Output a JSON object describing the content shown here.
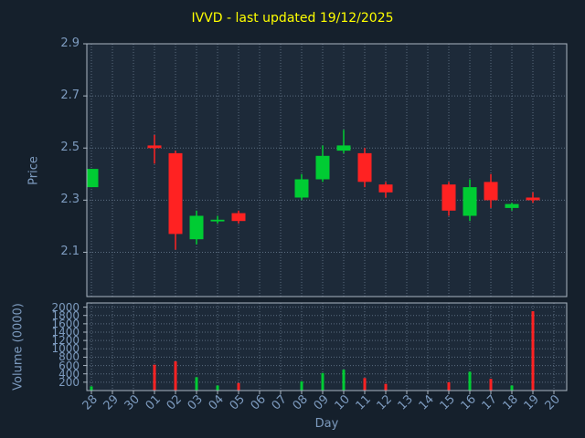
{
  "colors": {
    "figure_bg": "#15202c",
    "plot_bg": "#1d2a39",
    "grid": "#5b6c80",
    "spine": "#aab6c2",
    "tick_label": "#7d9bbf",
    "axis_label": "#7d9bbf",
    "title": "#ffff00",
    "up": "#00cc33",
    "down": "#ff2222"
  },
  "chart_data": {
    "type": "candlestick",
    "title": "IVVD - last updated 19/12/2025",
    "xlabel": "Day",
    "price_axis": {
      "label": "Price",
      "ticks": [
        2.1,
        2.3,
        2.5,
        2.7,
        2.9
      ],
      "ylim": [
        1.93,
        2.9
      ]
    },
    "volume_axis": {
      "label": "Volume (0000)",
      "ticks": [
        200,
        400,
        600,
        800,
        1000,
        1200,
        1400,
        1600,
        1800,
        2000
      ],
      "ylim": [
        0,
        2100
      ]
    },
    "days": [
      "28",
      "29",
      "30",
      "01",
      "02",
      "03",
      "04",
      "05",
      "06",
      "07",
      "08",
      "09",
      "10",
      "11",
      "12",
      "13",
      "14",
      "15",
      "16",
      "17",
      "18",
      "19",
      "20"
    ],
    "candles": [
      {
        "day": "28",
        "open": 2.35,
        "high": 2.42,
        "low": 2.35,
        "close": 2.42
      },
      null,
      null,
      {
        "day": "01",
        "open": 2.51,
        "high": 2.55,
        "low": 2.44,
        "close": 2.5
      },
      {
        "day": "02",
        "open": 2.48,
        "high": 2.49,
        "low": 2.11,
        "close": 2.17
      },
      {
        "day": "03",
        "open": 2.15,
        "high": 2.26,
        "low": 2.13,
        "close": 2.24
      },
      {
        "day": "04",
        "open": 2.22,
        "high": 2.24,
        "low": 2.21,
        "close": 2.225
      },
      {
        "day": "05",
        "open": 2.25,
        "high": 2.26,
        "low": 2.21,
        "close": 2.22
      },
      null,
      null,
      {
        "day": "08",
        "open": 2.31,
        "high": 2.4,
        "low": 2.3,
        "close": 2.38
      },
      {
        "day": "09",
        "open": 2.38,
        "high": 2.51,
        "low": 2.37,
        "close": 2.47
      },
      {
        "day": "10",
        "open": 2.49,
        "high": 2.57,
        "low": 2.48,
        "close": 2.51
      },
      {
        "day": "11",
        "open": 2.48,
        "high": 2.5,
        "low": 2.35,
        "close": 2.37
      },
      {
        "day": "12",
        "open": 2.36,
        "high": 2.37,
        "low": 2.31,
        "close": 2.33
      },
      null,
      null,
      {
        "day": "15",
        "open": 2.36,
        "high": 2.37,
        "low": 2.24,
        "close": 2.26
      },
      {
        "day": "16",
        "open": 2.24,
        "high": 2.38,
        "low": 2.22,
        "close": 2.35
      },
      {
        "day": "17",
        "open": 2.37,
        "high": 2.4,
        "low": 2.27,
        "close": 2.3
      },
      {
        "day": "18",
        "open": 2.27,
        "high": 2.29,
        "low": 2.26,
        "close": 2.285
      },
      {
        "day": "19",
        "open": 2.31,
        "high": 2.33,
        "low": 2.29,
        "close": 2.3
      },
      null
    ],
    "volumes": [
      100,
      0,
      0,
      620,
      700,
      320,
      120,
      180,
      0,
      0,
      220,
      420,
      500,
      300,
      160,
      0,
      0,
      200,
      450,
      280,
      120,
      1900,
      0
    ]
  }
}
